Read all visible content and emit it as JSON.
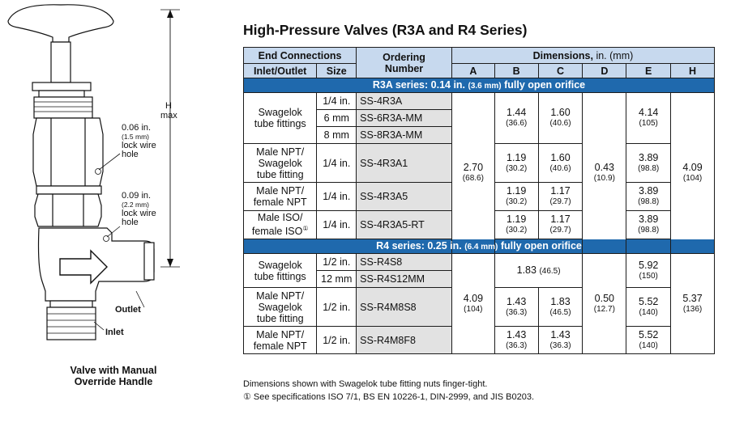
{
  "drawing": {
    "h_label": "H",
    "h_sub": "max",
    "lock1_dim": "0.06 in.",
    "lock1_mm": "(1.5 mm)",
    "lock1_text1": "lock wire",
    "lock1_text2": "hole",
    "lock2_dim": "0.09 in.",
    "lock2_mm": "(2.2 mm)",
    "lock2_text1": "lock wire",
    "lock2_text2": "hole",
    "outlet": "Outlet",
    "inlet": "Inlet",
    "caption_line1": "Valve with Manual",
    "caption_line2": "Override Handle"
  },
  "title": "High-Pressure Valves (R3A and R4 Series)",
  "table": {
    "h_end_connections": "End Connections",
    "h_ordering1": "Ordering",
    "h_ordering2": "Number",
    "h_dimensions": "Dimensions,",
    "h_dim_units": " in. (mm)",
    "h_inlet_outlet": "Inlet/Outlet",
    "h_size": "Size",
    "h_a": "A",
    "h_b": "B",
    "h_c": "C",
    "h_d": "D",
    "h_e": "E",
    "h_h": "H",
    "r3a_band": "R3A series: 0.14 in.",
    "r3a_band_mm": "(3.6 mm)",
    "r3a_band_end": "fully open orifice",
    "r4_band": "R4 series: 0.25 in.",
    "r4_band_mm": "(6.4 mm)",
    "r4_band_end": "fully open orifice",
    "r3a": {
      "g1_line1": "Swagelok",
      "g1_line2": "tube fittings",
      "g1_sizes": [
        "1/4 in.",
        "6 mm",
        "8 mm"
      ],
      "g1_orders": [
        "SS-4R3A",
        "SS-6R3A-MM",
        "SS-8R3A-MM"
      ],
      "g1_b": "1.44",
      "g1_b_mm": "(36.6)",
      "g1_c": "1.60",
      "g1_c_mm": "(40.6)",
      "g1_e": "4.14",
      "g1_e_mm": "(105)",
      "a": "2.70",
      "a_mm": "(68.6)",
      "d": "0.43",
      "d_mm": "(10.9)",
      "h": "4.09",
      "h_mm": "(104)",
      "g2_line1": "Male NPT/",
      "g2_line2": "Swagelok",
      "g2_line3": "tube fitting",
      "g2_size": "1/4 in.",
      "g2_order": "SS-4R3A1",
      "g2_b": "1.19",
      "g2_b_mm": "(30.2)",
      "g2_c": "1.60",
      "g2_c_mm": "(40.6)",
      "g2_e": "3.89",
      "g2_e_mm": "(98.8)",
      "g3_line1": "Male NPT/",
      "g3_line2": "female NPT",
      "g3_size": "1/4 in.",
      "g3_order": "SS-4R3A5",
      "g3_b": "1.19",
      "g3_b_mm": "(30.2)",
      "g3_c": "1.17",
      "g3_c_mm": "(29.7)",
      "g3_e": "3.89",
      "g3_e_mm": "(98.8)",
      "g4_line1": "Male ISO/",
      "g4_line2": "female ISO",
      "g4_note": "①",
      "g4_size": "1/4 in.",
      "g4_order": "SS-4R3A5-RT",
      "g4_b": "1.19",
      "g4_b_mm": "(30.2)",
      "g4_c": "1.17",
      "g4_c_mm": "(29.7)",
      "g4_e": "3.89",
      "g4_e_mm": "(98.8)"
    },
    "r4": {
      "g1_line1": "Swagelok",
      "g1_line2": "tube fittings",
      "g1_sizes": [
        "1/2 in.",
        "12 mm"
      ],
      "g1_orders": [
        "SS-R4S8",
        "SS-R4S12MM"
      ],
      "g1_bc": "1.83",
      "g1_bc_mm": "(46.5)",
      "g1_e": "5.92",
      "g1_e_mm": "(150)",
      "a": "4.09",
      "a_mm": "(104)",
      "d": "0.50",
      "d_mm": "(12.7)",
      "h": "5.37",
      "h_mm": "(136)",
      "g2_line1": "Male NPT/",
      "g2_line2": "Swagelok",
      "g2_line3": "tube fitting",
      "g2_size": "1/2 in.",
      "g2_order": "SS-R4M8S8",
      "g2_b": "1.43",
      "g2_b_mm": "(36.3)",
      "g2_c": "1.83",
      "g2_c_mm": "(46.5)",
      "g2_e": "5.52",
      "g2_e_mm": "(140)",
      "g3_line1": "Male NPT/",
      "g3_line2": "female NPT",
      "g3_size": "1/2 in.",
      "g3_order": "SS-R4M8F8",
      "g3_b": "1.43",
      "g3_b_mm": "(36.3)",
      "g3_c": "1.43",
      "g3_c_mm": "(36.3)",
      "g3_e": "5.52",
      "g3_e_mm": "(140)"
    }
  },
  "notes": {
    "line1": "Dimensions shown with Swagelok tube fitting nuts finger-tight.",
    "line2": "① See specifications ISO 7/1, BS EN 10226-1, DIN-2999, and JIS B0203."
  }
}
